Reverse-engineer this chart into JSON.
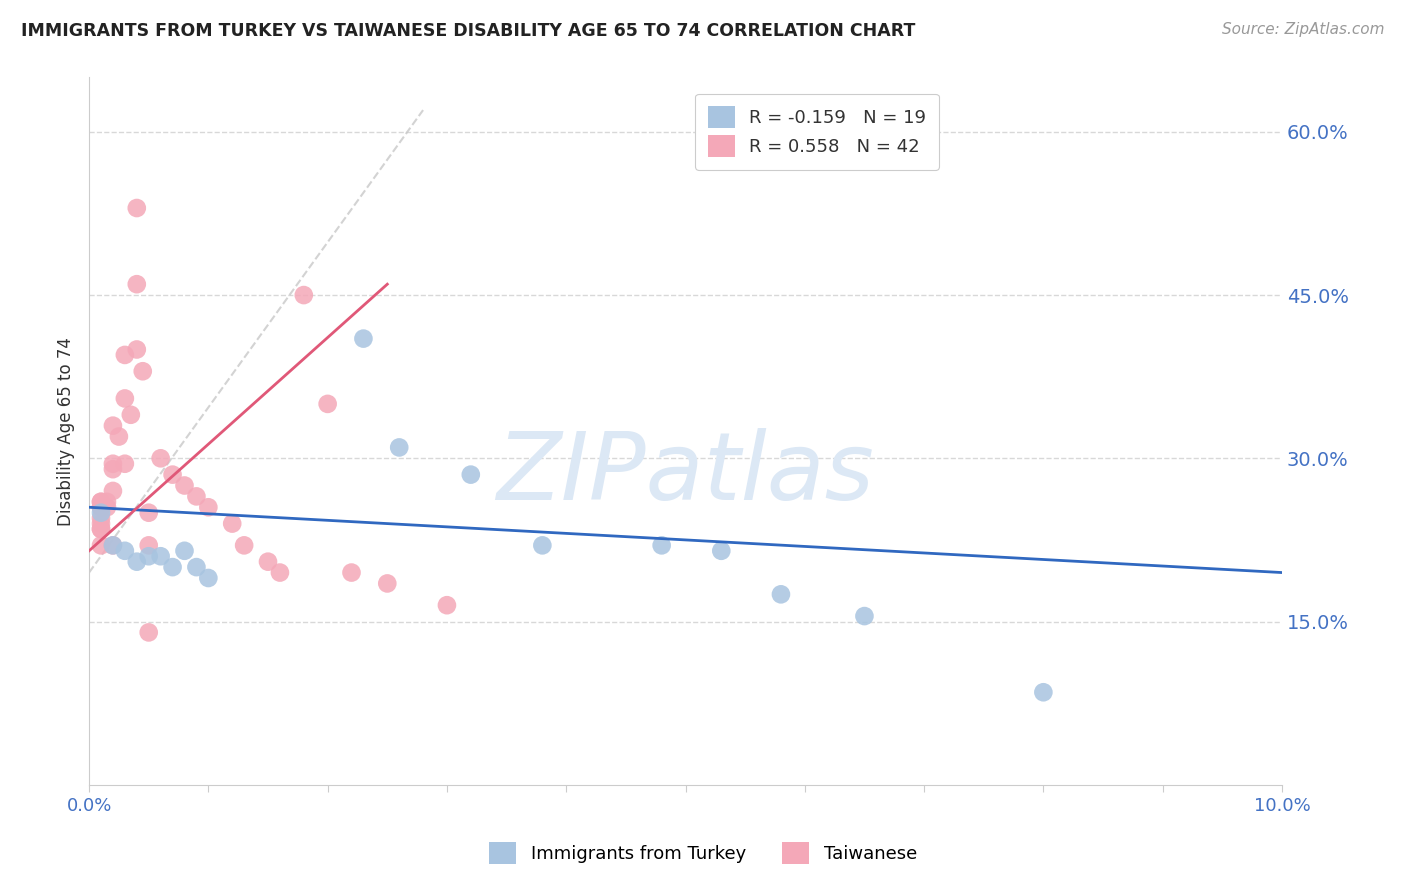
{
  "title": "IMMIGRANTS FROM TURKEY VS TAIWANESE DISABILITY AGE 65 TO 74 CORRELATION CHART",
  "source": "Source: ZipAtlas.com",
  "ylabel": "Disability Age 65 to 74",
  "right_yticks": [
    "60.0%",
    "45.0%",
    "30.0%",
    "15.0%"
  ],
  "right_ytick_vals": [
    0.6,
    0.45,
    0.3,
    0.15
  ],
  "legend_blue_r": "-0.159",
  "legend_blue_n": "19",
  "legend_pink_r": "0.558",
  "legend_pink_n": "42",
  "legend_label_blue": "Immigrants from Turkey",
  "legend_label_pink": "Taiwanese",
  "watermark": "ZIPatlas",
  "blue_color": "#a8c4e0",
  "pink_color": "#f4a8b8",
  "blue_line_color": "#3068c0",
  "pink_line_color": "#e05878",
  "dashed_line_color": "#c8c8c8",
  "title_color": "#222222",
  "right_axis_color": "#4472c4",
  "watermark_color": "#dce8f5",
  "background_color": "#ffffff",
  "grid_color": "#d8d8d8",
  "blue_points_x": [
    0.001,
    0.002,
    0.003,
    0.004,
    0.005,
    0.006,
    0.007,
    0.008,
    0.009,
    0.01,
    0.023,
    0.026,
    0.032,
    0.038,
    0.048,
    0.053,
    0.058,
    0.065,
    0.08
  ],
  "blue_points_y": [
    0.25,
    0.22,
    0.215,
    0.205,
    0.21,
    0.21,
    0.2,
    0.215,
    0.2,
    0.19,
    0.41,
    0.31,
    0.285,
    0.22,
    0.22,
    0.215,
    0.175,
    0.155,
    0.085
  ],
  "pink_points_x": [
    0.001,
    0.001,
    0.001,
    0.001,
    0.001,
    0.001,
    0.001,
    0.001,
    0.001,
    0.0015,
    0.0015,
    0.002,
    0.002,
    0.002,
    0.002,
    0.002,
    0.0025,
    0.003,
    0.003,
    0.003,
    0.0035,
    0.004,
    0.004,
    0.004,
    0.0045,
    0.005,
    0.005,
    0.005,
    0.006,
    0.007,
    0.008,
    0.009,
    0.01,
    0.012,
    0.013,
    0.015,
    0.016,
    0.018,
    0.02,
    0.022,
    0.025,
    0.03
  ],
  "pink_points_y": [
    0.235,
    0.24,
    0.245,
    0.255,
    0.26,
    0.26,
    0.255,
    0.235,
    0.22,
    0.255,
    0.26,
    0.29,
    0.27,
    0.295,
    0.33,
    0.22,
    0.32,
    0.355,
    0.395,
    0.295,
    0.34,
    0.46,
    0.53,
    0.4,
    0.38,
    0.25,
    0.22,
    0.14,
    0.3,
    0.285,
    0.275,
    0.265,
    0.255,
    0.24,
    0.22,
    0.205,
    0.195,
    0.45,
    0.35,
    0.195,
    0.185,
    0.165
  ],
  "xlim": [
    0.0,
    0.1
  ],
  "ylim": [
    0.0,
    0.65
  ],
  "blue_trend_x": [
    0.0,
    0.1
  ],
  "blue_trend_y": [
    0.255,
    0.195
  ],
  "pink_trend_x": [
    0.0,
    0.025
  ],
  "pink_trend_y": [
    0.215,
    0.46
  ],
  "dashed_line_x": [
    0.0,
    0.028
  ],
  "dashed_line_y": [
    0.195,
    0.62
  ],
  "x_tick_positions": [
    0.0,
    0.01,
    0.02,
    0.03,
    0.04,
    0.05,
    0.06,
    0.07,
    0.08,
    0.09,
    0.1
  ]
}
